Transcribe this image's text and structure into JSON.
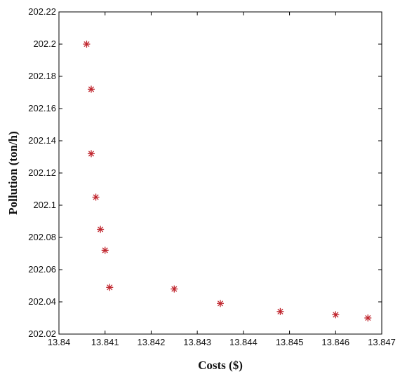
{
  "chart_data": {
    "type": "scatter",
    "title": "",
    "xlabel": "Costs ($)",
    "ylabel": "Pollution (ton/h)",
    "xlim": [
      13.84,
      13.847
    ],
    "ylim": [
      202.02,
      202.22
    ],
    "x_ticks": [
      "13.84",
      "13.841",
      "13.842",
      "13.843",
      "13.844",
      "13.845",
      "13.846",
      "13.847"
    ],
    "y_ticks": [
      "202.02",
      "202.04",
      "202.06",
      "202.08",
      "202.1",
      "202.12",
      "202.14",
      "202.16",
      "202.18",
      "202.2",
      "202.22"
    ],
    "marker": "asterisk",
    "marker_color": "#c0262e",
    "grid": false,
    "legend": "none",
    "series": [
      {
        "points": [
          {
            "x": 13.8406,
            "y": 202.2
          },
          {
            "x": 13.8407,
            "y": 202.172
          },
          {
            "x": 13.8407,
            "y": 202.132
          },
          {
            "x": 13.8408,
            "y": 202.105
          },
          {
            "x": 13.8409,
            "y": 202.085
          },
          {
            "x": 13.841,
            "y": 202.072
          },
          {
            "x": 13.8411,
            "y": 202.049
          },
          {
            "x": 13.8425,
            "y": 202.048
          },
          {
            "x": 13.8435,
            "y": 202.039
          },
          {
            "x": 13.8448,
            "y": 202.034
          },
          {
            "x": 13.846,
            "y": 202.032
          },
          {
            "x": 13.8467,
            "y": 202.03
          }
        ]
      }
    ]
  }
}
